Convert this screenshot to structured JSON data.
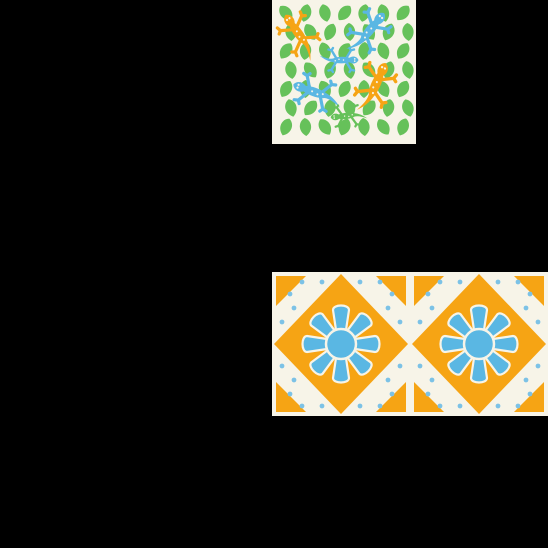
{
  "colors": {
    "background": "#000000",
    "cream": "#f7f4e8",
    "orange": "#f6a414",
    "blue": "#5ab7e3",
    "green": "#66c15a",
    "dot_blue": "#7cc2e6"
  },
  "icons": {
    "lizard_pattern": "lizard-tessellation-icon",
    "tile_pattern": "sun-diamond-tile-icon"
  }
}
